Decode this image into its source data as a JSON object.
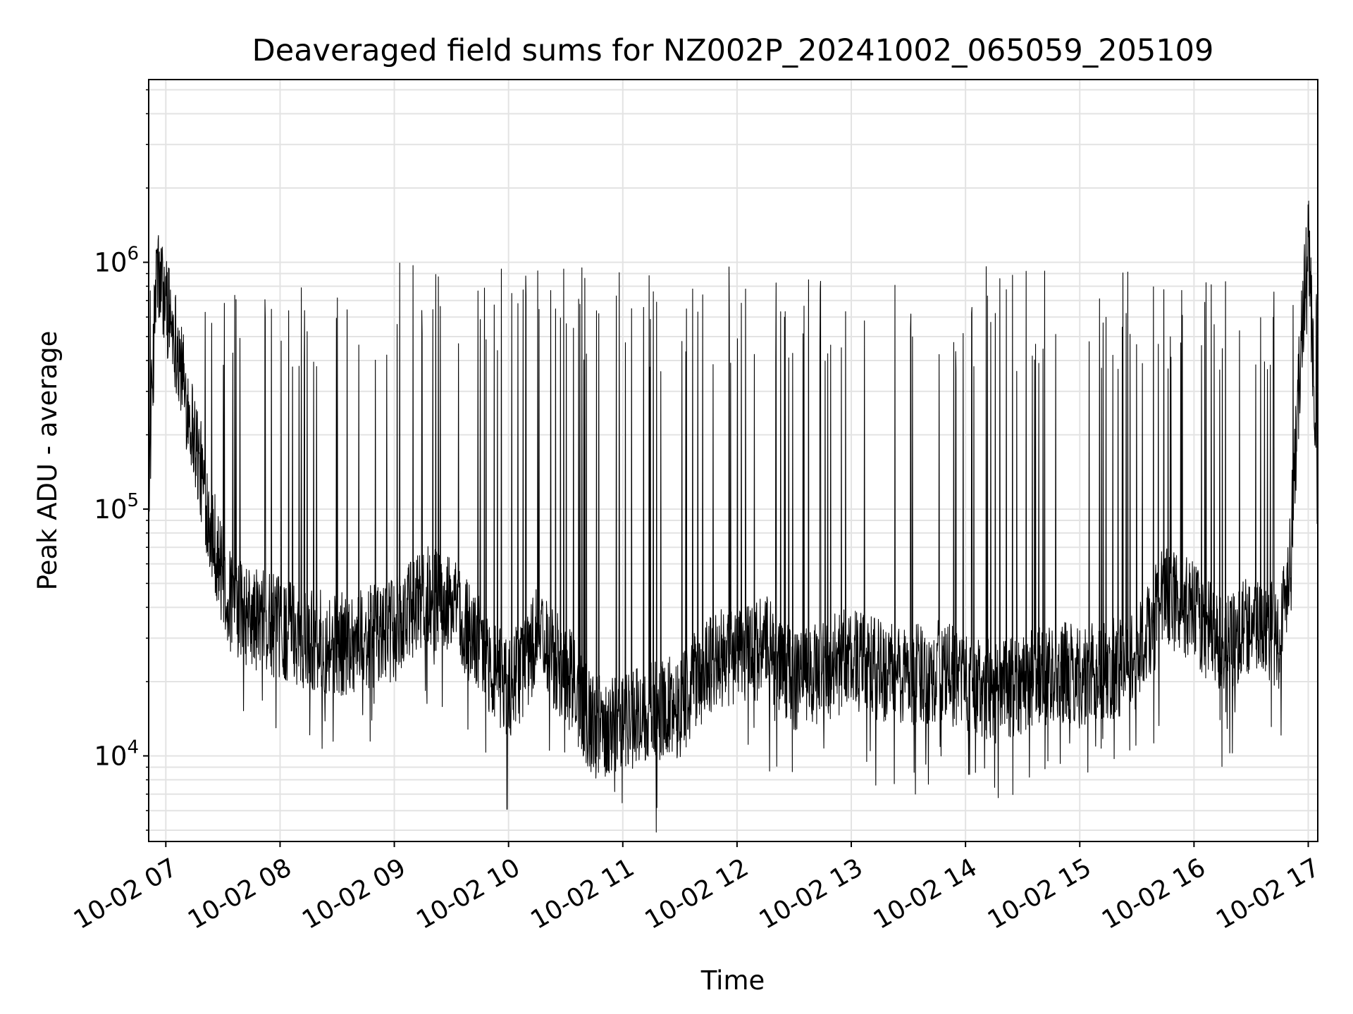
{
  "chart_data": {
    "type": "line",
    "title": "Deaveraged field sums for NZ002P_20241002_065059_205109",
    "xlabel": "Time",
    "ylabel": "Peak ADU - average",
    "yscale": "log",
    "ylim": [
      4500,
      5500000
    ],
    "xlim": [
      "2024-10-02 06:51",
      "2024-10-02 17:05"
    ],
    "grid": true,
    "line_color": "#000000",
    "x_ticks": [
      {
        "value": "2024-10-02 07:00",
        "label": "10-02 07"
      },
      {
        "value": "2024-10-02 08:00",
        "label": "10-02 08"
      },
      {
        "value": "2024-10-02 09:00",
        "label": "10-02 09"
      },
      {
        "value": "2024-10-02 10:00",
        "label": "10-02 10"
      },
      {
        "value": "2024-10-02 11:00",
        "label": "10-02 11"
      },
      {
        "value": "2024-10-02 12:00",
        "label": "10-02 12"
      },
      {
        "value": "2024-10-02 13:00",
        "label": "10-02 13"
      },
      {
        "value": "2024-10-02 14:00",
        "label": "10-02 14"
      },
      {
        "value": "2024-10-02 15:00",
        "label": "10-02 15"
      },
      {
        "value": "2024-10-02 16:00",
        "label": "10-02 16"
      },
      {
        "value": "2024-10-02 17:00",
        "label": "10-02 17"
      }
    ],
    "y_ticks": [
      {
        "value": 10000,
        "base": "10",
        "exp": "4"
      },
      {
        "value": 100000,
        "base": "10",
        "exp": "5"
      },
      {
        "value": 1000000,
        "base": "10",
        "exp": "6"
      }
    ],
    "series": [
      {
        "x": [
          "2024-10-02 06:51",
          "2024-10-02 06:55",
          "2024-10-02 07:00",
          "2024-10-02 07:05",
          "2024-10-02 07:10",
          "2024-10-02 07:15",
          "2024-10-02 07:20",
          "2024-10-02 07:25",
          "2024-10-02 07:30",
          "2024-10-02 07:35",
          "2024-10-02 07:40",
          "2024-10-02 07:45",
          "2024-10-02 07:50",
          "2024-10-02 08:00",
          "2024-10-02 08:15",
          "2024-10-02 08:30",
          "2024-10-02 08:45",
          "2024-10-02 09:00",
          "2024-10-02 09:15",
          "2024-10-02 09:30",
          "2024-10-02 09:45",
          "2024-10-02 10:00",
          "2024-10-02 10:15",
          "2024-10-02 10:30",
          "2024-10-02 10:45",
          "2024-10-02 11:00",
          "2024-10-02 11:15",
          "2024-10-02 11:30",
          "2024-10-02 11:45",
          "2024-10-02 12:00",
          "2024-10-02 12:15",
          "2024-10-02 12:30",
          "2024-10-02 12:45",
          "2024-10-02 13:00",
          "2024-10-02 13:15",
          "2024-10-02 13:30",
          "2024-10-02 13:45",
          "2024-10-02 14:00",
          "2024-10-02 14:15",
          "2024-10-02 14:30",
          "2024-10-02 14:45",
          "2024-10-02 15:00",
          "2024-10-02 15:15",
          "2024-10-02 15:30",
          "2024-10-02 15:45",
          "2024-10-02 16:00",
          "2024-10-02 16:15",
          "2024-10-02 16:30",
          "2024-10-02 16:45",
          "2024-10-02 16:50",
          "2024-10-02 16:55",
          "2024-10-02 17:00",
          "2024-10-02 17:05"
        ],
        "y": [
          120000,
          900000,
          700000,
          500000,
          300000,
          200000,
          120000,
          80000,
          50000,
          40000,
          38000,
          36000,
          35000,
          33000,
          30000,
          28000,
          30000,
          32000,
          45000,
          40000,
          28000,
          18000,
          30000,
          22000,
          13000,
          14000,
          15000,
          16000,
          24000,
          25000,
          28000,
          20000,
          22000,
          25000,
          22000,
          21000,
          22000,
          20000,
          18000,
          20000,
          22000,
          21000,
          22000,
          25000,
          45000,
          38000,
          28000,
          35000,
          30000,
          60000,
          300000,
          1500000,
          100000
        ]
      }
    ]
  }
}
